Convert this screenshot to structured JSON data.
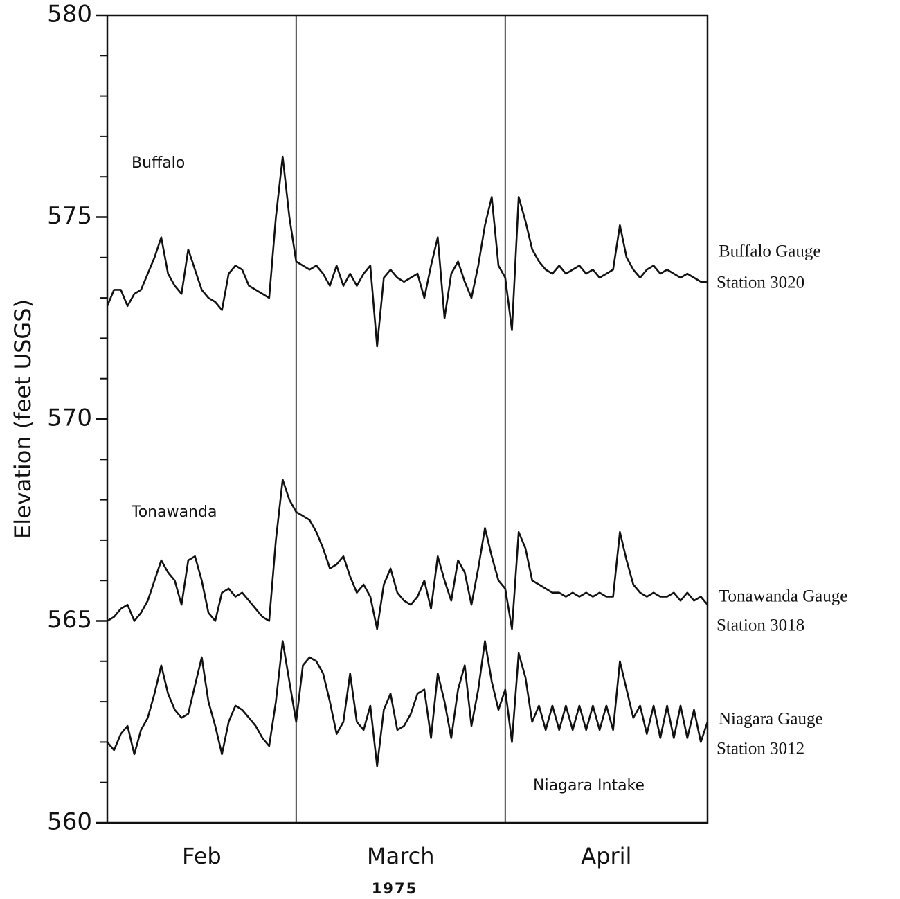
{
  "chart_data": {
    "type": "line",
    "ylabel": "Elevation (feet USGS)",
    "xlabel": "1975",
    "ylim": [
      560,
      580
    ],
    "yticks": [
      560,
      565,
      570,
      575,
      580
    ],
    "yminorticks": [
      561,
      562,
      563,
      564,
      566,
      567,
      568,
      569,
      571,
      572,
      573,
      574,
      576,
      577,
      578,
      579
    ],
    "xlim": [
      0,
      89
    ],
    "xticks": [
      {
        "value": 14,
        "label": "Feb"
      },
      {
        "value": 43.5,
        "label": "March"
      },
      {
        "value": 74,
        "label": "April"
      }
    ],
    "vlines": [
      28,
      59
    ],
    "grid": false,
    "annotations": [
      "Buffalo",
      "Tonawanda",
      "Niagara Intake"
    ],
    "x": [
      0,
      1,
      2,
      3,
      4,
      5,
      6,
      7,
      8,
      9,
      10,
      11,
      12,
      13,
      14,
      15,
      16,
      17,
      18,
      19,
      20,
      21,
      22,
      23,
      24,
      25,
      26,
      27,
      28,
      29,
      30,
      31,
      32,
      33,
      34,
      35,
      36,
      37,
      38,
      39,
      40,
      41,
      42,
      43,
      44,
      45,
      46,
      47,
      48,
      49,
      50,
      51,
      52,
      53,
      54,
      55,
      56,
      57,
      58,
      59,
      60,
      61,
      62,
      63,
      64,
      65,
      66,
      67,
      68,
      69,
      70,
      71,
      72,
      73,
      74,
      75,
      76,
      77,
      78,
      79,
      80,
      81,
      82,
      83,
      84,
      85,
      86,
      87,
      88,
      89
    ],
    "series": [
      {
        "name": "Buffalo Gauge",
        "station": "Station 3020",
        "color": "#111111",
        "values": [
          572.8,
          573.2,
          573.2,
          572.8,
          573.1,
          573.2,
          573.6,
          574.0,
          574.5,
          573.6,
          573.3,
          573.1,
          574.2,
          573.7,
          573.2,
          573.0,
          572.9,
          572.7,
          573.6,
          573.8,
          573.7,
          573.3,
          573.2,
          573.1,
          573.0,
          575.0,
          576.5,
          575.0,
          573.9,
          573.8,
          573.7,
          573.8,
          573.6,
          573.3,
          573.8,
          573.3,
          573.6,
          573.3,
          573.6,
          573.8,
          571.8,
          573.5,
          573.7,
          573.5,
          573.4,
          573.5,
          573.6,
          573.0,
          573.8,
          574.5,
          572.5,
          573.6,
          573.9,
          573.4,
          573.0,
          573.8,
          574.8,
          575.5,
          573.8,
          573.5,
          572.2,
          575.5,
          574.9,
          574.2,
          573.9,
          573.7,
          573.6,
          573.8,
          573.6,
          573.7,
          573.8,
          573.6,
          573.7,
          573.5,
          573.6,
          573.7,
          574.8,
          574.0,
          573.7,
          573.5,
          573.7,
          573.8,
          573.6,
          573.7,
          573.6,
          573.5,
          573.6,
          573.5,
          573.4,
          573.4
        ]
      },
      {
        "name": "Tonawanda Gauge",
        "station": "Station 3018",
        "color": "#111111",
        "values": [
          565.0,
          565.1,
          565.3,
          565.4,
          565.0,
          565.2,
          565.5,
          566.0,
          566.5,
          566.2,
          566.0,
          565.4,
          566.5,
          566.6,
          566.0,
          565.2,
          565.0,
          565.7,
          565.8,
          565.6,
          565.7,
          565.5,
          565.3,
          565.1,
          565.0,
          567.0,
          568.5,
          568.0,
          567.7,
          567.6,
          567.5,
          567.2,
          566.8,
          566.3,
          566.4,
          566.6,
          566.1,
          565.7,
          565.9,
          565.6,
          564.8,
          565.9,
          566.3,
          565.7,
          565.5,
          565.4,
          565.6,
          566.0,
          565.3,
          566.6,
          566.0,
          565.5,
          566.5,
          566.2,
          565.4,
          566.3,
          567.3,
          566.6,
          566.0,
          565.8,
          564.8,
          567.2,
          566.8,
          566.0,
          565.9,
          565.8,
          565.7,
          565.7,
          565.6,
          565.7,
          565.6,
          565.7,
          565.6,
          565.7,
          565.6,
          565.6,
          567.2,
          566.5,
          565.9,
          565.7,
          565.6,
          565.7,
          565.6,
          565.6,
          565.7,
          565.5,
          565.7,
          565.5,
          565.6,
          565.4
        ]
      },
      {
        "name": "Niagara Gauge",
        "station": "Station 3012",
        "color": "#111111",
        "values": [
          562.0,
          561.8,
          562.2,
          562.4,
          561.7,
          562.3,
          562.6,
          563.2,
          563.9,
          563.2,
          562.8,
          562.6,
          562.7,
          563.4,
          564.1,
          563.0,
          562.4,
          561.7,
          562.5,
          562.9,
          562.8,
          562.6,
          562.4,
          562.1,
          561.9,
          563.0,
          564.5,
          563.5,
          562.5,
          563.9,
          564.1,
          564.0,
          563.7,
          563.0,
          562.2,
          562.5,
          563.7,
          562.5,
          562.3,
          562.9,
          561.4,
          562.8,
          563.2,
          562.3,
          562.4,
          562.7,
          563.2,
          563.3,
          562.1,
          563.7,
          563.0,
          562.1,
          563.3,
          563.9,
          562.4,
          563.3,
          564.5,
          563.5,
          562.8,
          563.3,
          562.0,
          564.2,
          563.6,
          562.5,
          562.9,
          562.3,
          562.9,
          562.3,
          562.9,
          562.3,
          562.9,
          562.3,
          562.9,
          562.3,
          562.9,
          562.3,
          564.0,
          563.3,
          562.6,
          562.9,
          562.2,
          562.9,
          562.1,
          562.9,
          562.1,
          562.9,
          562.1,
          562.8,
          562.0,
          562.5
        ]
      }
    ]
  }
}
